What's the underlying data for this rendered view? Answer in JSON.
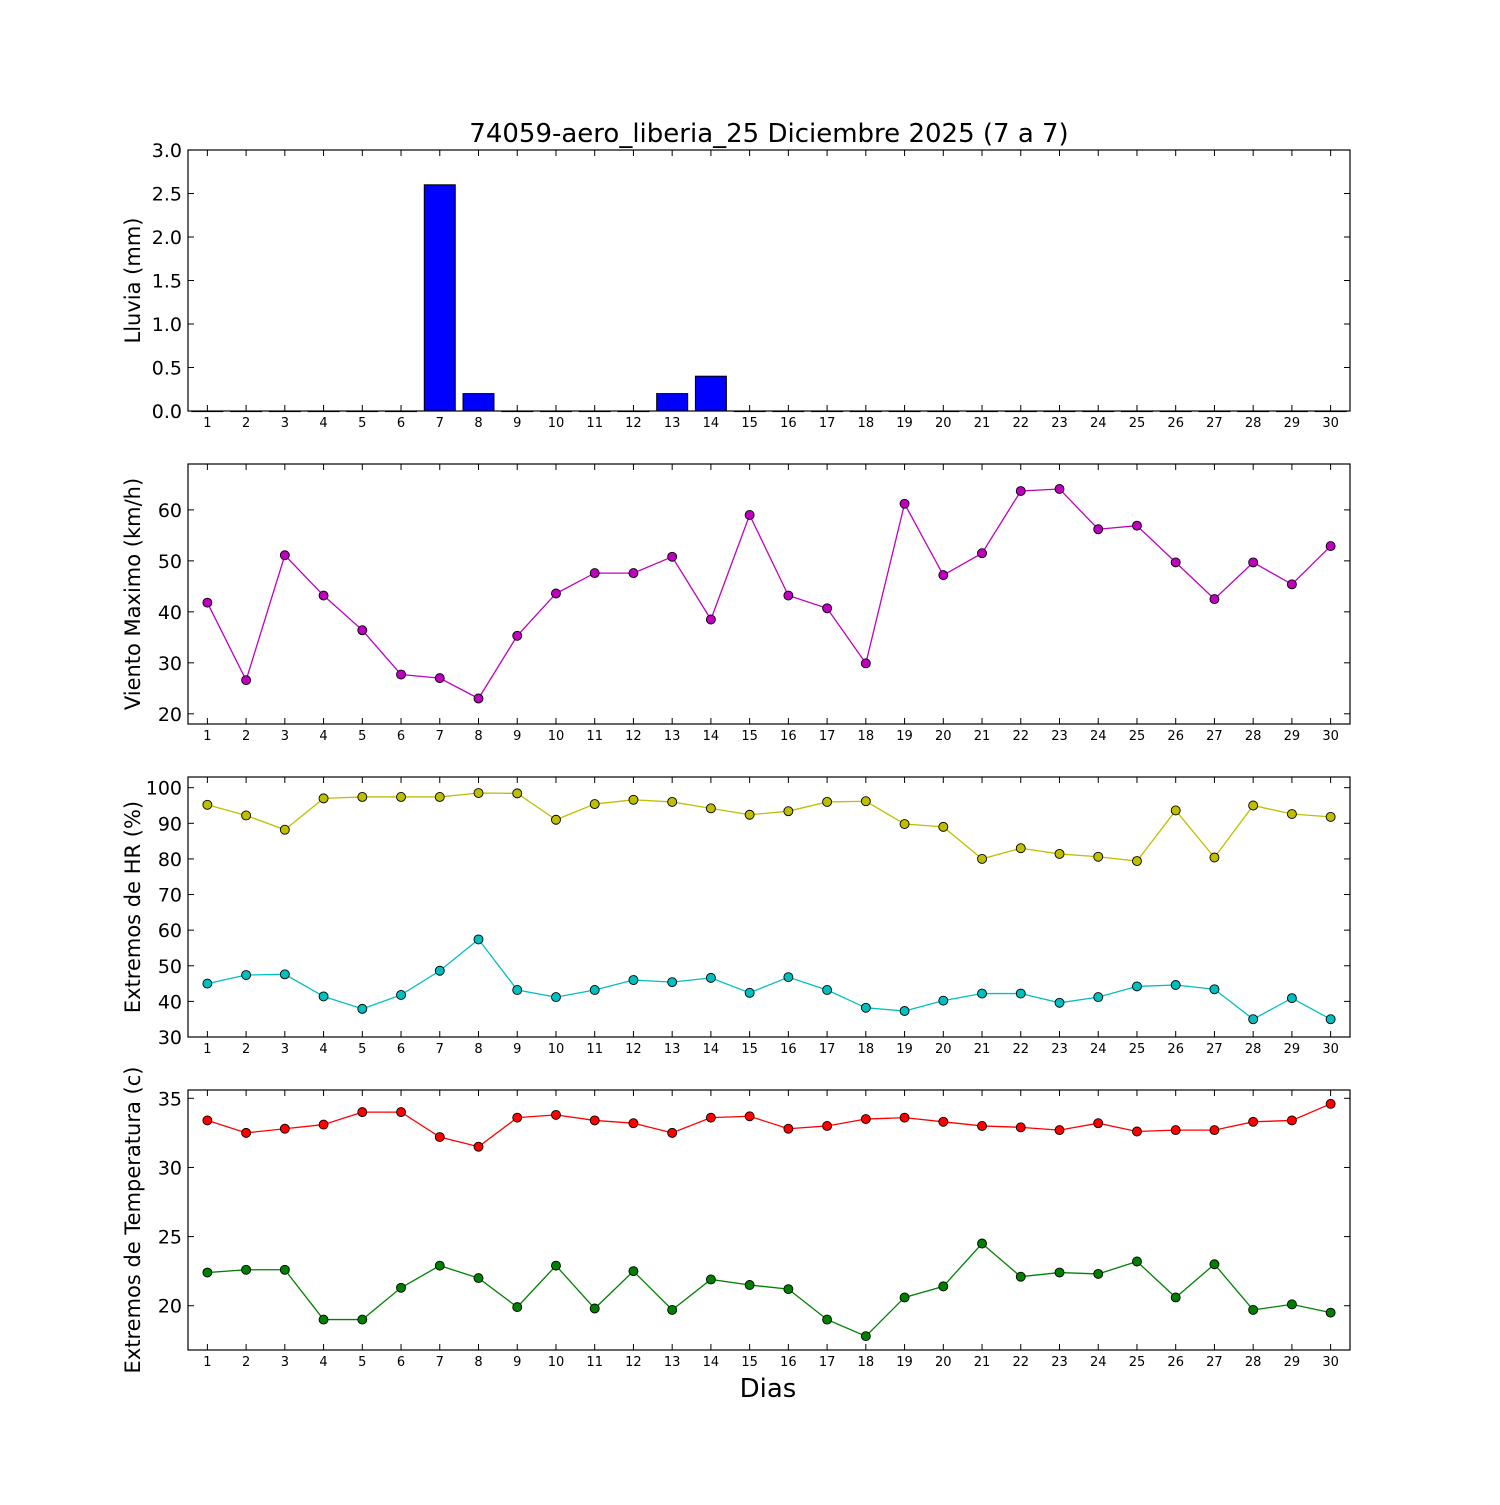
{
  "figure": {
    "title": "74059-aero_liberia_25 Diciembre 2025  (7 a 7)",
    "xlabel": "Dias"
  },
  "chart_data": [
    {
      "type": "bar",
      "ylabel": "Lluvia (mm)",
      "ylim": [
        0,
        3.0
      ],
      "yticks": [
        0.0,
        0.5,
        1.0,
        1.5,
        2.0,
        2.5,
        3.0
      ],
      "ytick_decimals": 1,
      "x": [
        1,
        2,
        3,
        4,
        5,
        6,
        7,
        8,
        9,
        10,
        11,
        12,
        13,
        14,
        15,
        16,
        17,
        18,
        19,
        20,
        21,
        22,
        23,
        24,
        25,
        26,
        27,
        28,
        29,
        30
      ],
      "series": [
        {
          "color": "#0000ff",
          "values": [
            0,
            0,
            0,
            0,
            0,
            0,
            2.6,
            0.2,
            0,
            0,
            0,
            0,
            0.2,
            0.4,
            0,
            0,
            0,
            0,
            0,
            0,
            0,
            0,
            0,
            0,
            0,
            0,
            0,
            0,
            0,
            0
          ]
        }
      ]
    },
    {
      "type": "line",
      "ylabel": "Viento Maximo (km/h)",
      "ylim": [
        18,
        69
      ],
      "yticks": [
        20,
        30,
        40,
        50,
        60
      ],
      "ytick_decimals": 0,
      "x": [
        1,
        2,
        3,
        4,
        5,
        6,
        7,
        8,
        9,
        10,
        11,
        12,
        13,
        14,
        15,
        16,
        17,
        18,
        19,
        20,
        21,
        22,
        23,
        24,
        25,
        26,
        27,
        28,
        29,
        30
      ],
      "series": [
        {
          "color": "#bf00bf",
          "values": [
            41.8,
            26.6,
            51.1,
            43.2,
            36.4,
            27.7,
            27.0,
            23.0,
            35.3,
            43.6,
            47.6,
            47.6,
            50.8,
            38.5,
            59.0,
            43.2,
            40.7,
            29.9,
            61.2,
            47.2,
            51.5,
            63.7,
            64.1,
            56.2,
            56.9,
            49.7,
            42.5,
            49.7,
            45.4,
            52.9
          ]
        }
      ]
    },
    {
      "type": "line",
      "ylabel": "Extremos de HR (%)",
      "ylim": [
        30,
        103
      ],
      "yticks": [
        30,
        40,
        50,
        60,
        70,
        80,
        90,
        100
      ],
      "ytick_decimals": 0,
      "x": [
        1,
        2,
        3,
        4,
        5,
        6,
        7,
        8,
        9,
        10,
        11,
        12,
        13,
        14,
        15,
        16,
        17,
        18,
        19,
        20,
        21,
        22,
        23,
        24,
        25,
        26,
        27,
        28,
        29,
        30
      ],
      "series": [
        {
          "color": "#bfbf00",
          "values": [
            95.2,
            92.2,
            88.2,
            97.0,
            97.4,
            97.4,
            97.4,
            98.5,
            98.4,
            91.0,
            95.4,
            96.6,
            96.0,
            94.2,
            92.4,
            93.4,
            96.0,
            96.2,
            89.8,
            89.0,
            80.0,
            83.0,
            81.4,
            80.6,
            79.4,
            93.6,
            80.4,
            95.0,
            92.6,
            91.8
          ]
        },
        {
          "color": "#00bfbf",
          "values": [
            45.0,
            47.4,
            47.6,
            41.4,
            37.9,
            41.8,
            48.6,
            57.4,
            43.2,
            41.2,
            43.2,
            46.0,
            45.4,
            46.6,
            42.4,
            46.8,
            43.2,
            38.2,
            37.3,
            40.2,
            42.2,
            42.2,
            39.6,
            41.2,
            44.2,
            44.6,
            43.4,
            35.0,
            40.9,
            35.0
          ]
        }
      ]
    },
    {
      "type": "line",
      "ylabel": "Extremos de Temperatura (c)",
      "ylim": [
        16.8,
        35.6
      ],
      "yticks": [
        20,
        25,
        30,
        35
      ],
      "ytick_decimals": 0,
      "x": [
        1,
        2,
        3,
        4,
        5,
        6,
        7,
        8,
        9,
        10,
        11,
        12,
        13,
        14,
        15,
        16,
        17,
        18,
        19,
        20,
        21,
        22,
        23,
        24,
        25,
        26,
        27,
        28,
        29,
        30
      ],
      "series": [
        {
          "color": "#ff0000",
          "values": [
            33.4,
            32.5,
            32.8,
            33.1,
            34.0,
            34.0,
            32.2,
            31.5,
            33.6,
            33.8,
            33.4,
            33.2,
            32.5,
            33.6,
            33.7,
            32.8,
            33.0,
            33.5,
            33.6,
            33.3,
            33.0,
            32.9,
            32.7,
            33.2,
            32.6,
            32.7,
            32.7,
            33.3,
            33.4,
            34.6
          ]
        },
        {
          "color": "#008000",
          "values": [
            22.4,
            22.6,
            22.6,
            19.0,
            19.0,
            21.3,
            22.9,
            22.0,
            19.9,
            22.9,
            19.8,
            22.5,
            19.7,
            21.9,
            21.5,
            21.2,
            19.0,
            17.8,
            20.6,
            21.4,
            24.5,
            22.1,
            22.4,
            22.3,
            23.2,
            20.6,
            23.0,
            19.7,
            20.1,
            19.5
          ]
        }
      ]
    }
  ]
}
